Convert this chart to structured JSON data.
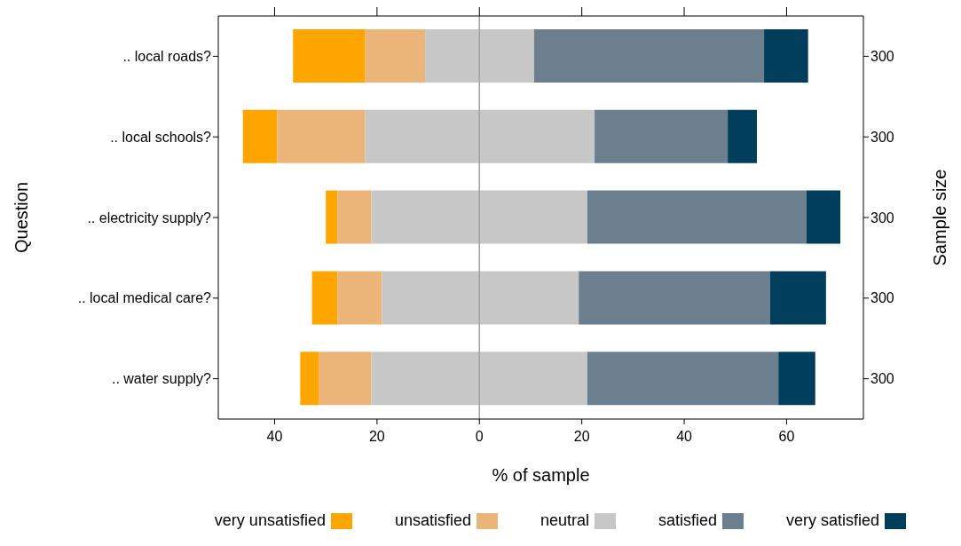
{
  "chart_data": {
    "type": "bar",
    "orientation": "horizontal",
    "categories": [
      ".. local roads?",
      ".. local schools?",
      ".. electricity supply?",
      ".. local medical care?",
      ".. water supply?"
    ],
    "y2_categories": [
      "300",
      "300",
      "300",
      "300",
      "300"
    ],
    "series": [
      {
        "name": "very unsatisfied",
        "color": "#ffa500",
        "base": [
          -36.4,
          -46.2,
          -30,
          -32.7,
          -35
        ],
        "values": [
          14.1,
          6.7,
          2.3,
          5,
          3.7
        ]
      },
      {
        "name": "unsatisfied",
        "color": "#ebb57a",
        "base": [
          -22.3,
          -39.5,
          -27.7,
          -27.7,
          -31.3
        ],
        "values": [
          11.7,
          17.2,
          6.6,
          8.7,
          10.2
        ]
      },
      {
        "name": "neutral",
        "color": "#c7c7c7",
        "base": [
          -10.6,
          -22.3,
          -21.1,
          -19,
          -21.1
        ],
        "values": [
          21.3,
          44.8,
          42.2,
          38.4,
          42.2
        ]
      },
      {
        "name": "satisfied",
        "color": "#6b7f8f",
        "base": [
          10.7,
          22.5,
          21.1,
          19.4,
          21.1
        ],
        "values": [
          44.9,
          26,
          42.8,
          37.4,
          37.3
        ]
      },
      {
        "name": "very satisfied",
        "color": "#003e5c",
        "base": [
          55.6,
          48.5,
          63.9,
          56.8,
          58.4
        ],
        "values": [
          8.6,
          5.7,
          6.6,
          10.9,
          7.2
        ]
      }
    ],
    "xlabel": "% of sample",
    "ylabel": "Question",
    "y2label": "Sample size",
    "xlim": [
      -51,
      75
    ],
    "xticks": [
      {
        "value": -40,
        "label": "40"
      },
      {
        "value": -20,
        "label": "20"
      },
      0,
      20,
      40,
      60
    ],
    "ref_lines": [
      {
        "axis": "x",
        "value": 0,
        "label": null,
        "color": "#a0a0a0"
      }
    ],
    "legend": "bottom",
    "grid": false
  }
}
